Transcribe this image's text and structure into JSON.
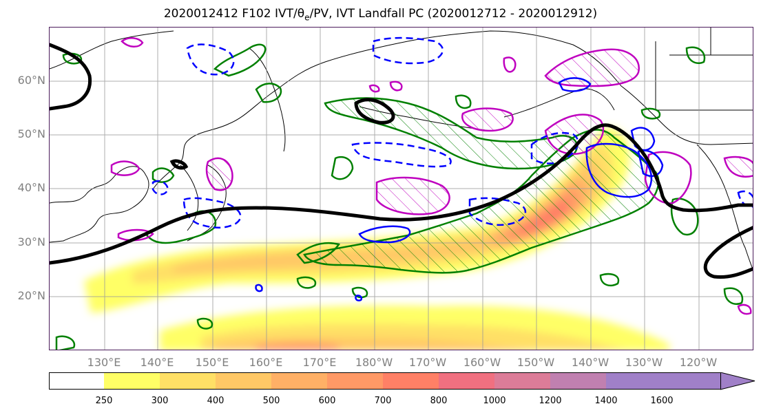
{
  "title": "2020012412 F102 IVT/θe/PV, IVT Landfall PC (2020012712 - 2020012912)",
  "map": {
    "lat_labels": [
      "60°N",
      "50°N",
      "40°N",
      "30°N",
      "20°N"
    ],
    "lon_labels": [
      "130°E",
      "140°E",
      "150°E",
      "160°E",
      "170°E",
      "180°W",
      "170°W",
      "160°W",
      "150°W",
      "140°W",
      "130°W",
      "120°W"
    ],
    "colors": {
      "theta_contour": "#000000",
      "pv_contour": "#0000ff",
      "landfall_pc_green": "#008000",
      "landfall_pc_magenta": "#bf00bf",
      "grid": "#999999"
    }
  },
  "colorbar": {
    "ticks": [
      "250",
      "300",
      "400",
      "500",
      "600",
      "700",
      "800",
      "1000",
      "1200",
      "1400",
      "1600"
    ],
    "colors": [
      "#ffff66",
      "#ffe066",
      "#ffc866",
      "#ffb066",
      "#ff9966",
      "#ff8066",
      "#f07080",
      "#dc7c98",
      "#c080b0",
      "#a080c8"
    ]
  }
}
